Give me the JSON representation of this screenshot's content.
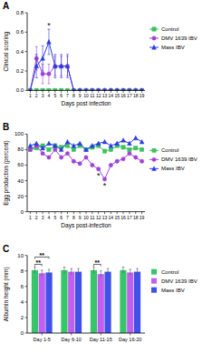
{
  "chart_data": [
    {
      "type": "line",
      "title": "A",
      "x_label": "Days post infection",
      "y_label": "Clinical scoring",
      "x": [
        1,
        2,
        3,
        4,
        5,
        6,
        7,
        8,
        9,
        10,
        11,
        12,
        13,
        14,
        15,
        16,
        17,
        18,
        19
      ],
      "xlim": [
        0.5,
        19.5
      ],
      "xticks": [
        1,
        2,
        3,
        4,
        5,
        6,
        7,
        8,
        9,
        10,
        11,
        12,
        13,
        14,
        15,
        16,
        17,
        18,
        19
      ],
      "ylim": [
        0,
        0.8
      ],
      "yticks": [
        {
          "value": 0,
          "label": "0.0"
        },
        {
          "value": 0.2,
          "label": "0.2"
        },
        {
          "value": 0.4,
          "label": "0.4"
        },
        {
          "value": 0.6,
          "label": "0.6"
        },
        {
          "value": 0.8,
          "label": "0.8"
        }
      ],
      "legend": "right",
      "series": [
        {
          "name": "Control",
          "color": "#3cc25e",
          "marker": "square",
          "values": [
            0,
            0,
            0,
            0,
            0,
            0,
            0,
            0,
            0,
            0,
            0,
            0,
            0,
            0,
            0,
            0,
            0,
            0,
            0
          ],
          "errors": [
            0,
            0,
            0,
            0,
            0,
            0,
            0,
            0,
            0,
            0,
            0,
            0,
            0,
            0,
            0,
            0,
            0,
            0,
            0
          ]
        },
        {
          "name": "DMV 1639 IBV",
          "color": "#a043d6",
          "marker": "circle",
          "values": [
            0,
            0.33,
            0.17,
            0.17,
            0.25,
            0.25,
            0.25,
            0,
            0,
            0,
            0,
            0,
            0,
            0,
            0,
            0,
            0,
            0,
            0
          ],
          "errors": [
            0,
            0.12,
            0.1,
            0.1,
            0.1,
            0.1,
            0.1,
            0,
            0,
            0,
            0,
            0,
            0,
            0,
            0,
            0,
            0,
            0,
            0
          ]
        },
        {
          "name": "Mass IBV",
          "color": "#2b3be0",
          "marker": "triangle",
          "values": [
            0,
            0.25,
            0.33,
            0.5,
            0.25,
            0.25,
            0.25,
            0,
            0,
            0,
            0,
            0,
            0,
            0,
            0,
            0,
            0,
            0,
            0
          ],
          "errors": [
            0,
            0.12,
            0.13,
            0.13,
            0.12,
            0.12,
            0.12,
            0,
            0,
            0,
            0,
            0,
            0,
            0,
            0,
            0,
            0,
            0,
            0
          ]
        }
      ],
      "annotations": [
        {
          "text": "*",
          "x": 4
        }
      ]
    },
    {
      "type": "line",
      "title": "B",
      "x_label": "Days post-infection",
      "y_label": "Egg production (percent)",
      "x": [
        1,
        2,
        3,
        4,
        5,
        6,
        7,
        8,
        9,
        10,
        11,
        12,
        13,
        14,
        15,
        16,
        17,
        18,
        19
      ],
      "xlim": [
        0.5,
        19.5
      ],
      "xticks": [
        1,
        2,
        3,
        4,
        5,
        6,
        7,
        8,
        9,
        10,
        11,
        12,
        13,
        14,
        15,
        16,
        17,
        18,
        19
      ],
      "ylim": [
        0,
        100
      ],
      "yticks": [
        0,
        20,
        40,
        60,
        80,
        100
      ],
      "legend": "right",
      "series": [
        {
          "name": "Control",
          "color": "#3cc25e",
          "marker": "square",
          "values": [
            80,
            82,
            85,
            80,
            85,
            83,
            85,
            80,
            85,
            80,
            83,
            85,
            78,
            80,
            85,
            83,
            80,
            82,
            80
          ]
        },
        {
          "name": "DMV 1639 IBV",
          "color": "#a043d6",
          "marker": "circle",
          "values": [
            80,
            85,
            75,
            70,
            80,
            70,
            75,
            65,
            62,
            70,
            60,
            55,
            42,
            60,
            65,
            68,
            75,
            70,
            65
          ]
        },
        {
          "name": "Mass IBV",
          "color": "#2b3be0",
          "marker": "triangle",
          "values": [
            85,
            88,
            82,
            88,
            85,
            80,
            90,
            85,
            88,
            80,
            85,
            88,
            90,
            85,
            88,
            92,
            88,
            95,
            90
          ]
        }
      ],
      "annotations": [
        {
          "text": "*",
          "x": 12,
          "series": 1
        },
        {
          "text": "*",
          "x": 13,
          "series": 1
        }
      ]
    },
    {
      "type": "bar",
      "title": "C",
      "y_label": "Albumin height (mm)",
      "categories": [
        "Day 1-5",
        "Day 6-10",
        "Day 11-15",
        "Day 16-20"
      ],
      "ylim": [
        0,
        10
      ],
      "yticks": [
        0,
        2,
        4,
        6,
        8,
        10
      ],
      "legend": "right",
      "series": [
        {
          "name": "Control",
          "color": "#38c46a",
          "values": [
            8.1,
            8.1,
            8.1,
            8.1
          ],
          "errors": [
            0.4,
            0.4,
            0.4,
            0.4
          ]
        },
        {
          "name": "DMV 1639 IBV",
          "color": "#c160f0",
          "values": [
            7.7,
            7.9,
            7.6,
            7.8
          ],
          "errors": [
            0.4,
            0.4,
            0.4,
            0.4
          ]
        },
        {
          "name": "Mass IBV",
          "color": "#3f51e8",
          "values": [
            7.8,
            7.9,
            7.9,
            7.9
          ],
          "errors": [
            0.4,
            0.4,
            0.4,
            0.4
          ]
        }
      ],
      "annotations": [
        {
          "text": "**",
          "category": 0,
          "series": [
            0,
            1
          ]
        },
        {
          "text": "**",
          "category": 0,
          "series": [
            0,
            2
          ]
        },
        {
          "text": "**",
          "category": 2,
          "series": [
            0,
            1
          ]
        }
      ]
    }
  ]
}
